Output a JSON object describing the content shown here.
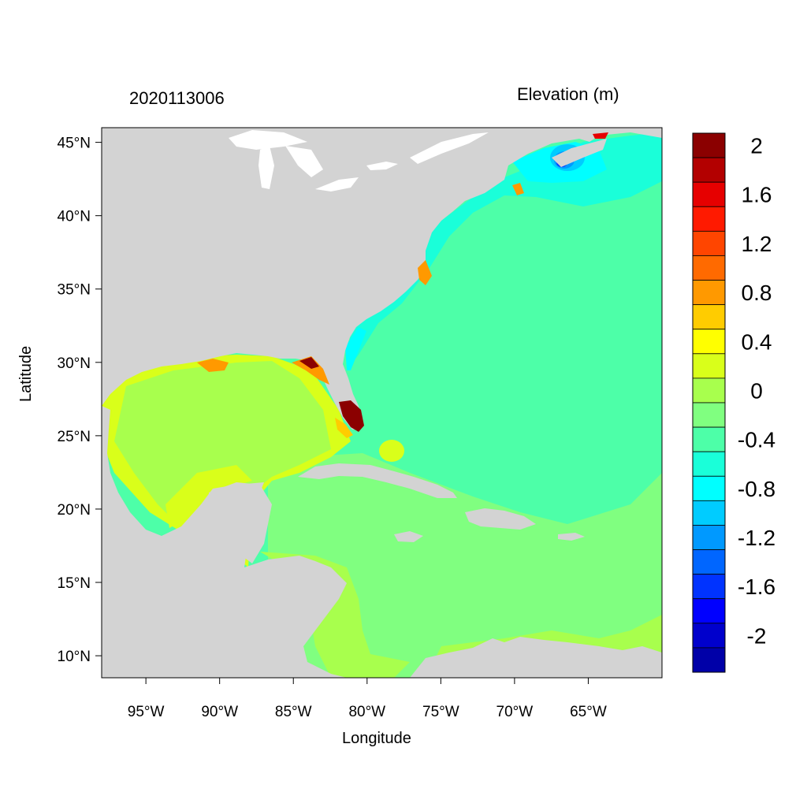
{
  "map": {
    "left_title": "2020113006",
    "right_title": "Elevation (m)",
    "x_label": "Longitude",
    "y_label": "Latitude",
    "lon_range": [
      -98,
      -60
    ],
    "lat_range": [
      8.5,
      46
    ],
    "lon_ticks": [
      {
        "value": -95,
        "label": "95°W"
      },
      {
        "value": -90,
        "label": "90°W"
      },
      {
        "value": -85,
        "label": "85°W"
      },
      {
        "value": -80,
        "label": "80°W"
      },
      {
        "value": -75,
        "label": "75°W"
      },
      {
        "value": -70,
        "label": "70°W"
      },
      {
        "value": -65,
        "label": "65°W"
      }
    ],
    "lat_ticks": [
      {
        "value": 45,
        "label": "45°N"
      },
      {
        "value": 40,
        "label": "40°N"
      },
      {
        "value": 35,
        "label": "35°N"
      },
      {
        "value": 30,
        "label": "30°N"
      },
      {
        "value": 25,
        "label": "25°N"
      },
      {
        "value": 20,
        "label": "20°N"
      },
      {
        "value": 15,
        "label": "15°N"
      },
      {
        "value": 10,
        "label": "10°N"
      }
    ],
    "land_color": "#d3d3d3",
    "lake_color": "#ffffff"
  },
  "colorbar": {
    "bins_top_to_bottom": [
      {
        "color": "#8b0000"
      },
      {
        "color": "#b30000"
      },
      {
        "color": "#e60000"
      },
      {
        "color": "#ff1a00"
      },
      {
        "color": "#ff4500"
      },
      {
        "color": "#ff6a00"
      },
      {
        "color": "#ff9900"
      },
      {
        "color": "#ffcc00"
      },
      {
        "color": "#ffff00"
      },
      {
        "color": "#d9ff1a"
      },
      {
        "color": "#a8ff4d"
      },
      {
        "color": "#80ff80"
      },
      {
        "color": "#4dffa8"
      },
      {
        "color": "#1affd9"
      },
      {
        "color": "#00ffff"
      },
      {
        "color": "#00ccff"
      },
      {
        "color": "#0099ff"
      },
      {
        "color": "#0066ff"
      },
      {
        "color": "#0033ff"
      },
      {
        "color": "#0000ff"
      },
      {
        "color": "#0000cc"
      },
      {
        "color": "#0000a8"
      }
    ],
    "labels": [
      {
        "text": "2",
        "value": 2
      },
      {
        "text": "1.6",
        "value": 1.6
      },
      {
        "text": "1.2",
        "value": 1.2
      },
      {
        "text": "0.8",
        "value": 0.8
      },
      {
        "text": "0.4",
        "value": 0.4
      },
      {
        "text": "0",
        "value": 0
      },
      {
        "text": "-0.4",
        "value": -0.4
      },
      {
        "text": "-0.8",
        "value": -0.8
      },
      {
        "text": "-1.2",
        "value": -1.2
      },
      {
        "text": "-1.6",
        "value": -1.6
      },
      {
        "text": "-2",
        "value": -2
      }
    ]
  }
}
